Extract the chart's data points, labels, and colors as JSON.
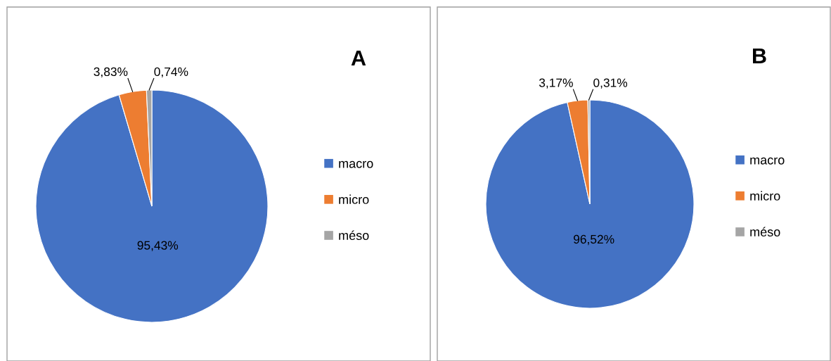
{
  "chart_data": [
    {
      "type": "pie",
      "title": "A",
      "categories": [
        "macro",
        "micro",
        "méso"
      ],
      "values": [
        95.43,
        3.83,
        0.74
      ],
      "value_labels": [
        "95,43%",
        "3,83%",
        "0,74%"
      ],
      "colors": [
        "#4472c4",
        "#ed7d31",
        "#a5a5a5"
      ],
      "legend": "right"
    },
    {
      "type": "pie",
      "title": "B",
      "categories": [
        "macro",
        "micro",
        "méso"
      ],
      "values": [
        96.52,
        3.17,
        0.31
      ],
      "value_labels": [
        "96,52%",
        "3,17%",
        "0,31%"
      ],
      "colors": [
        "#4472c4",
        "#ed7d31",
        "#a5a5a5"
      ],
      "legend": "right"
    }
  ]
}
